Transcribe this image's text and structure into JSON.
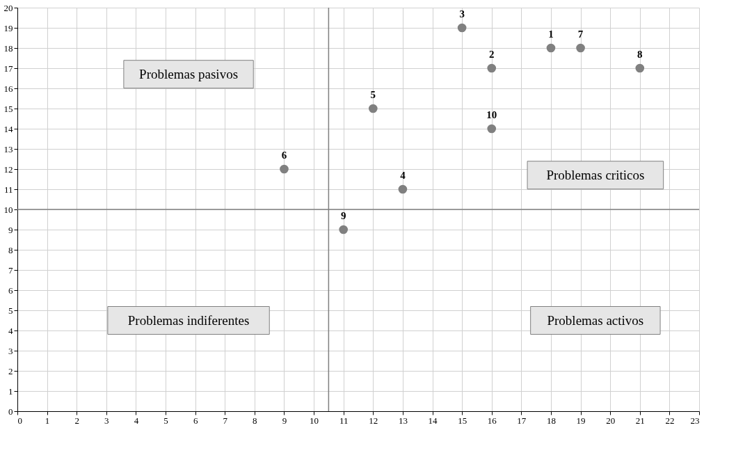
{
  "chart_data": {
    "type": "scatter",
    "x": [
      18,
      16,
      15,
      13,
      12,
      9,
      19,
      21,
      11,
      16
    ],
    "series": [
      {
        "color": "#808080",
        "values": [
          18,
          17,
          19,
          11,
          15,
          12,
          18,
          17,
          9,
          14
        ]
      }
    ],
    "xlim": [
      0,
      23
    ],
    "ylim": [
      0,
      20
    ],
    "xticks": [
      0,
      1,
      2,
      3,
      4,
      5,
      6,
      7,
      8,
      9,
      10,
      11,
      12,
      13,
      14,
      15,
      16,
      17,
      18,
      19,
      20,
      21,
      22,
      23
    ],
    "yticks": [
      0,
      1,
      2,
      3,
      4,
      5,
      6,
      7,
      8,
      9,
      10,
      11,
      12,
      13,
      14,
      15,
      16,
      17,
      18,
      19,
      20
    ],
    "grid": true,
    "marker": "circle",
    "ref_lines": [
      {
        "axis": "x",
        "value": 10.5,
        "color": "#808080"
      },
      {
        "axis": "y",
        "value": 10,
        "color": "#808080"
      }
    ],
    "annotations": [
      {
        "text": "1",
        "x": 18,
        "y": 18
      },
      {
        "text": "2",
        "x": 16,
        "y": 17
      },
      {
        "text": "3",
        "x": 15,
        "y": 19
      },
      {
        "text": "4",
        "x": 13,
        "y": 11
      },
      {
        "text": "5",
        "x": 12,
        "y": 15
      },
      {
        "text": "6",
        "x": 9,
        "y": 12
      },
      {
        "text": "7",
        "x": 19,
        "y": 18
      },
      {
        "text": "8",
        "x": 21,
        "y": 17
      },
      {
        "text": "9",
        "x": 11,
        "y": 9
      },
      {
        "text": "10",
        "x": 16,
        "y": 14
      },
      "Problemas pasivos",
      "Problemas criticos",
      "Problemas indiferentes",
      "Problemas activos"
    ]
  }
}
